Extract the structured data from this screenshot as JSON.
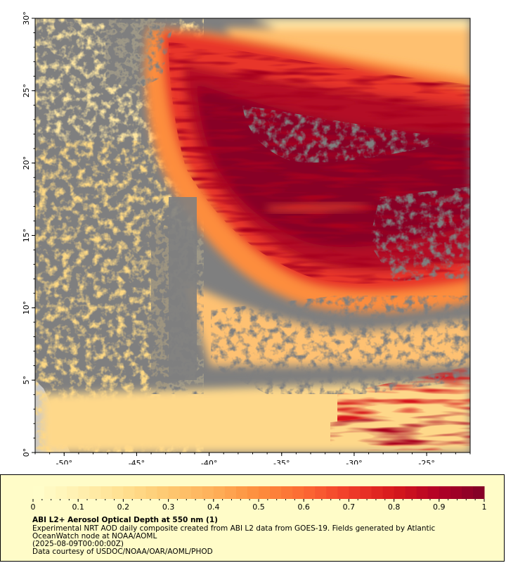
{
  "map": {
    "lon_range": [
      -52,
      -22
    ],
    "lat_range": [
      0,
      30
    ],
    "lon_ticks": [
      -50,
      -45,
      -40,
      -35,
      -30,
      -25
    ],
    "lat_ticks": [
      0,
      5,
      10,
      15,
      20,
      25,
      30
    ],
    "lon_tick_labels": [
      "-50°",
      "-45°",
      "-40°",
      "-35°",
      "-30°",
      "-25°"
    ],
    "lat_tick_labels": [
      "0°",
      "5°",
      "10°",
      "15°",
      "20°",
      "25°",
      "30°"
    ],
    "no_data_color": "#7f7f7f",
    "land_color": "#c8c8c8"
  },
  "colorbar": {
    "min": 0,
    "max": 1,
    "tick_values": [
      0,
      0.1,
      0.2,
      0.3,
      0.4,
      0.5,
      0.6,
      0.7,
      0.8,
      0.9,
      1
    ],
    "tick_labels": [
      "0",
      "0.1",
      "0.2",
      "0.3",
      "0.4",
      "0.5",
      "0.6",
      "0.7",
      "0.8",
      "0.9",
      "1"
    ],
    "colors": [
      "#ffffcc",
      "#fff0b0",
      "#ffe090",
      "#fec870",
      "#feb05a",
      "#fd8d3c",
      "#fc6a33",
      "#f03c2a",
      "#d7191c",
      "#b10026",
      "#800026"
    ]
  },
  "caption": {
    "title": "ABI L2+ Aerosol Optical Depth at 550 nm (1)",
    "line1": "Experimental NRT AOD daily composite created from ABI L2 data from GOES-19. Fields generated by Atlantic",
    "line2": "OceanWatch node at NOAA/AOML",
    "line3": "(2025-08-09T00:00:00Z)",
    "line4": "Data courtesy of USDOC/NOAA/OAR/AOML/PHOD"
  }
}
